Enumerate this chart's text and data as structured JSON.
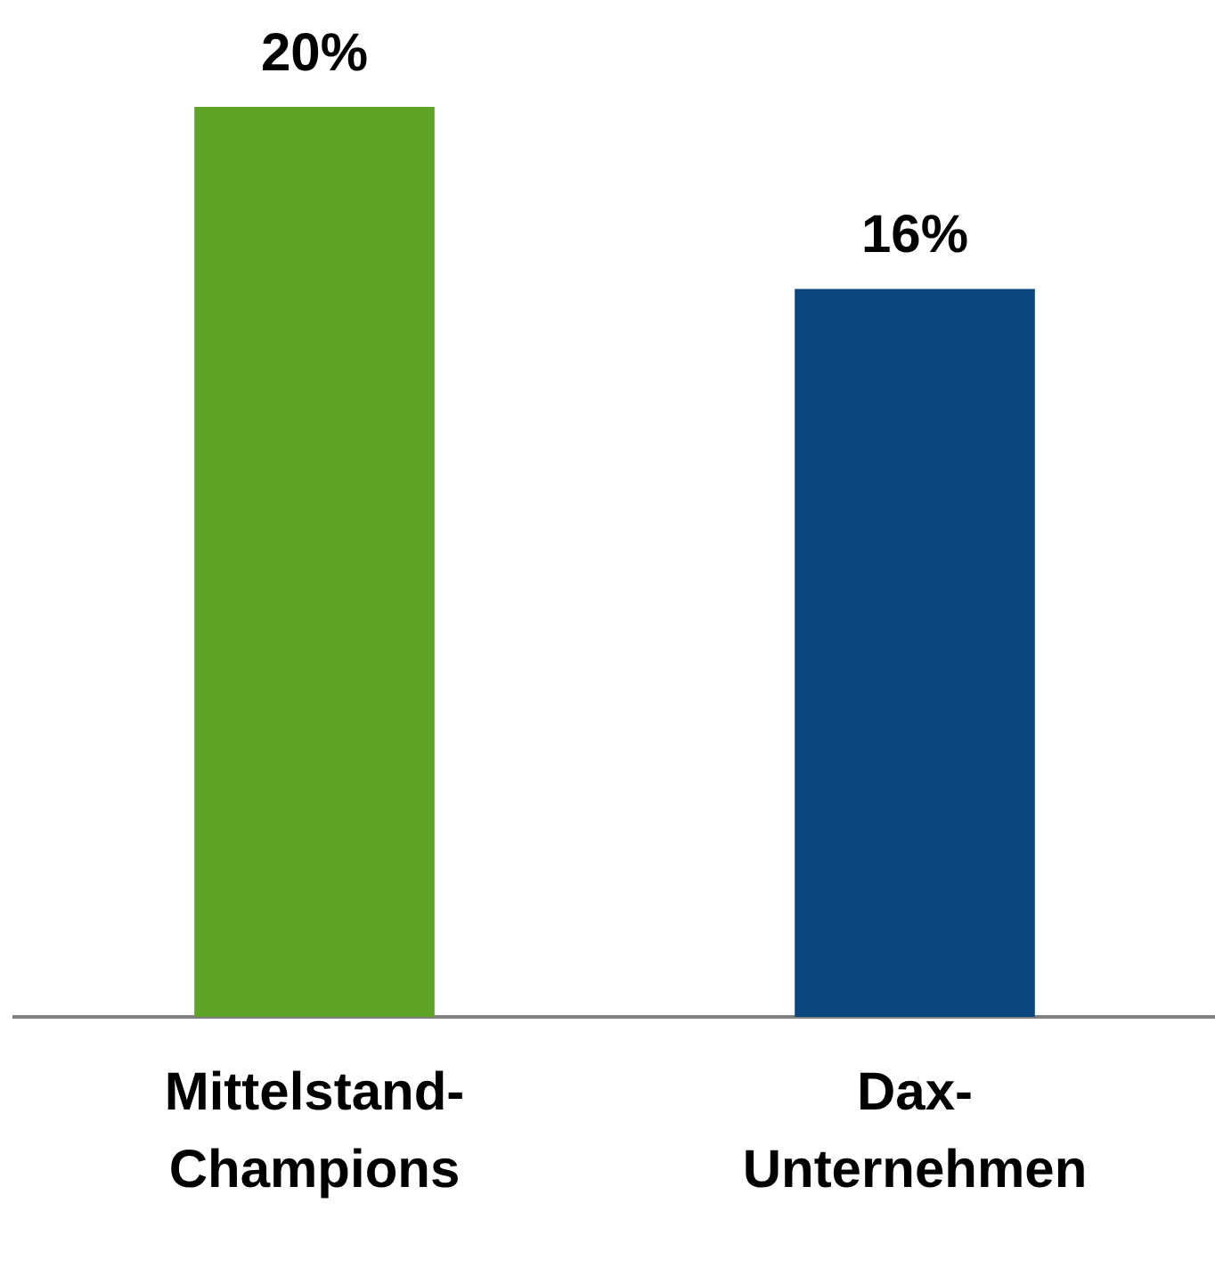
{
  "chart_data": {
    "type": "bar",
    "categories": [
      "Mittelstand-Champions",
      "Dax-Unternehmen"
    ],
    "values": [
      20,
      16
    ],
    "colors": [
      "#5ea226",
      "#0b467c"
    ],
    "value_labels": [
      "20%",
      "16%"
    ]
  }
}
